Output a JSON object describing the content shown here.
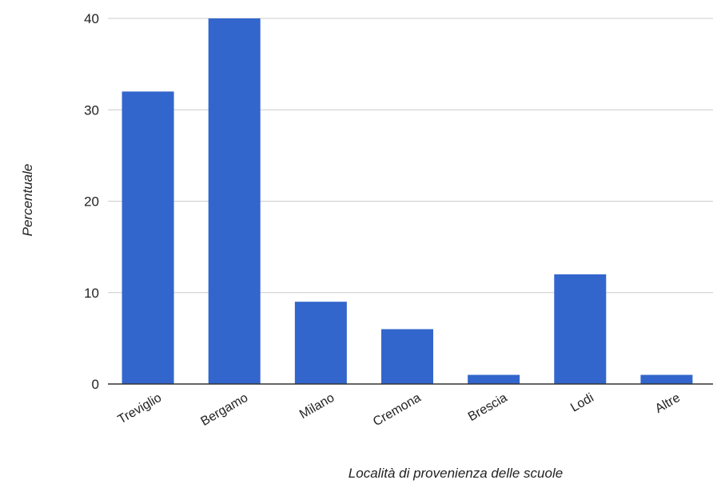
{
  "chart_data": {
    "type": "bar",
    "categories": [
      "Treviglio",
      "Bergamo",
      "Milano",
      "Cremona",
      "Brescia",
      "Lodi",
      "Altre"
    ],
    "values": [
      32,
      40,
      9,
      6,
      1,
      12,
      1
    ],
    "title": "",
    "xlabel": "Località di provenienza delle scuole",
    "ylabel": "Percentuale",
    "ylim": [
      0,
      40
    ],
    "yticks": [
      0,
      10,
      20,
      30,
      40
    ],
    "grid": true,
    "bar_color": "#3366cc",
    "grid_color": "#cccccc",
    "baseline_color": "#333333"
  }
}
